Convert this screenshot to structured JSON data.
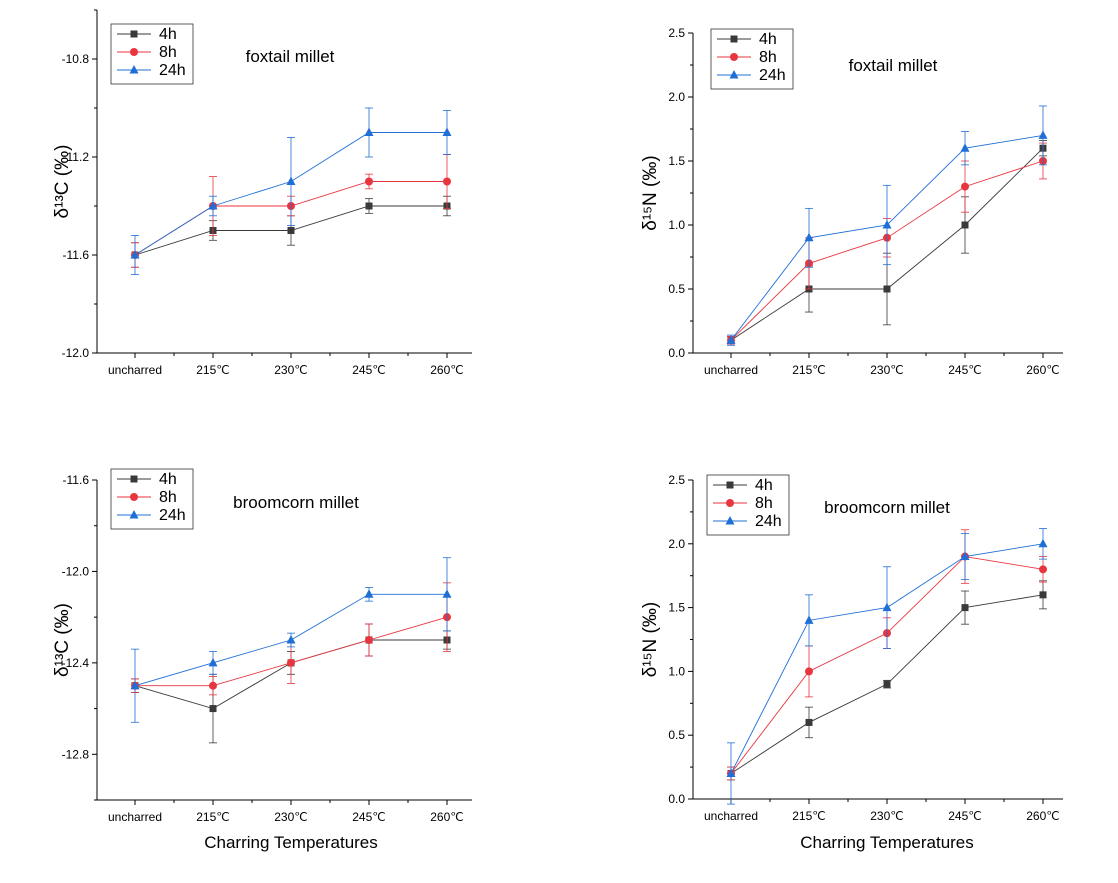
{
  "x_axis_label": "Charring Temperatures",
  "chart_data": [
    {
      "type": "line",
      "title": "foxtail millet",
      "ylabel": "δ¹³C (‰)",
      "xlabel": "",
      "categories": [
        "uncharred",
        "215℃",
        "230℃",
        "245℃",
        "260℃"
      ],
      "ylim": [
        -12.0,
        -10.6
      ],
      "yticks": [
        -12.0,
        -11.6,
        -11.2,
        -10.8
      ],
      "ytick_labels": [
        "-12.0",
        "-11.6",
        "-11.2",
        "-10.8"
      ],
      "legend": "top-left",
      "series": [
        {
          "name": "4h",
          "color": "#3a3a3a",
          "marker": "square",
          "values": [
            -11.6,
            -11.5,
            -11.5,
            -11.4,
            -11.4
          ],
          "errors": [
            0.05,
            0.04,
            0.06,
            0.03,
            0.04
          ]
        },
        {
          "name": "8h",
          "color": "#e8363f",
          "marker": "circle",
          "values": [
            -11.6,
            -11.4,
            -11.4,
            -11.3,
            -11.3
          ],
          "errors": [
            0.05,
            0.12,
            0.04,
            0.03,
            0.11
          ]
        },
        {
          "name": "24h",
          "color": "#1f6fd6",
          "marker": "triangle",
          "values": [
            -11.6,
            -11.4,
            -11.3,
            -11.1,
            -11.1
          ],
          "errors": [
            0.08,
            0.04,
            0.18,
            0.1,
            0.09
          ]
        }
      ]
    },
    {
      "type": "line",
      "title": "foxtail millet",
      "ylabel": "δ¹⁵N (‰)",
      "xlabel": "",
      "categories": [
        "uncharred",
        "215℃",
        "230℃",
        "245℃",
        "260℃"
      ],
      "ylim": [
        0.0,
        2.5
      ],
      "yticks": [
        0.0,
        0.5,
        1.0,
        1.5,
        2.0,
        2.5
      ],
      "ytick_labels": [
        "0.0",
        "0.5",
        "1.0",
        "1.5",
        "2.0",
        "2.5"
      ],
      "legend": "top-left",
      "series": [
        {
          "name": "4h",
          "color": "#3a3a3a",
          "marker": "square",
          "values": [
            0.1,
            0.5,
            0.5,
            1.0,
            1.6
          ],
          "errors": [
            0.03,
            0.18,
            0.28,
            0.22,
            0.06
          ]
        },
        {
          "name": "8h",
          "color": "#e8363f",
          "marker": "circle",
          "values": [
            0.1,
            0.7,
            0.9,
            1.3,
            1.5
          ],
          "errors": [
            0.03,
            0.2,
            0.15,
            0.2,
            0.14
          ]
        },
        {
          "name": "24h",
          "color": "#1f6fd6",
          "marker": "triangle",
          "values": [
            0.1,
            0.9,
            1.0,
            1.6,
            1.7
          ],
          "errors": [
            0.04,
            0.23,
            0.31,
            0.13,
            0.23
          ]
        }
      ]
    },
    {
      "type": "line",
      "title": "broomcorn millet",
      "ylabel": "δ¹³C (‰)",
      "xlabel": "",
      "categories": [
        "uncharred",
        "215℃",
        "230℃",
        "245℃",
        "260℃"
      ],
      "ylim": [
        -13.0,
        -11.6
      ],
      "yticks": [
        -12.8,
        -12.4,
        -12.0,
        -11.6
      ],
      "ytick_labels": [
        "-12.8",
        "-12.4",
        "-12.0",
        "-11.6"
      ],
      "legend": "top-left",
      "series": [
        {
          "name": "4h",
          "color": "#3a3a3a",
          "marker": "square",
          "values": [
            -12.5,
            -12.6,
            -12.4,
            -12.3,
            -12.3
          ],
          "errors": [
            0.03,
            0.15,
            0.05,
            0.07,
            0.04
          ]
        },
        {
          "name": "8h",
          "color": "#e8363f",
          "marker": "circle",
          "values": [
            -12.5,
            -12.5,
            -12.4,
            -12.3,
            -12.2
          ],
          "errors": [
            0.03,
            0.04,
            0.09,
            0.07,
            0.15
          ]
        },
        {
          "name": "24h",
          "color": "#1f6fd6",
          "marker": "triangle",
          "values": [
            -12.5,
            -12.4,
            -12.3,
            -12.1,
            -12.1
          ],
          "errors": [
            0.16,
            0.05,
            0.03,
            0.03,
            0.16
          ]
        }
      ]
    },
    {
      "type": "line",
      "title": "broomcorn millet",
      "ylabel": "δ¹⁵N (‰)",
      "xlabel": "",
      "categories": [
        "uncharred",
        "215℃",
        "230℃",
        "245℃",
        "260℃"
      ],
      "ylim": [
        0.0,
        2.5
      ],
      "yticks": [
        0.0,
        0.5,
        1.0,
        1.5,
        2.0,
        2.5
      ],
      "ytick_labels": [
        "0.0",
        "0.5",
        "1.0",
        "1.5",
        "2.0",
        "2.5"
      ],
      "legend": "top-left",
      "series": [
        {
          "name": "4h",
          "color": "#3a3a3a",
          "marker": "square",
          "values": [
            0.2,
            0.6,
            0.9,
            1.5,
            1.6
          ],
          "errors": [
            0.05,
            0.12,
            0.03,
            0.13,
            0.11
          ]
        },
        {
          "name": "8h",
          "color": "#e8363f",
          "marker": "circle",
          "values": [
            0.2,
            1.0,
            1.3,
            1.9,
            1.8
          ],
          "errors": [
            0.05,
            0.2,
            0.12,
            0.21,
            0.1
          ]
        },
        {
          "name": "24h",
          "color": "#1f6fd6",
          "marker": "triangle",
          "values": [
            0.2,
            1.4,
            1.5,
            1.9,
            2.0
          ],
          "errors": [
            0.24,
            0.2,
            0.32,
            0.18,
            0.12
          ]
        }
      ]
    }
  ]
}
